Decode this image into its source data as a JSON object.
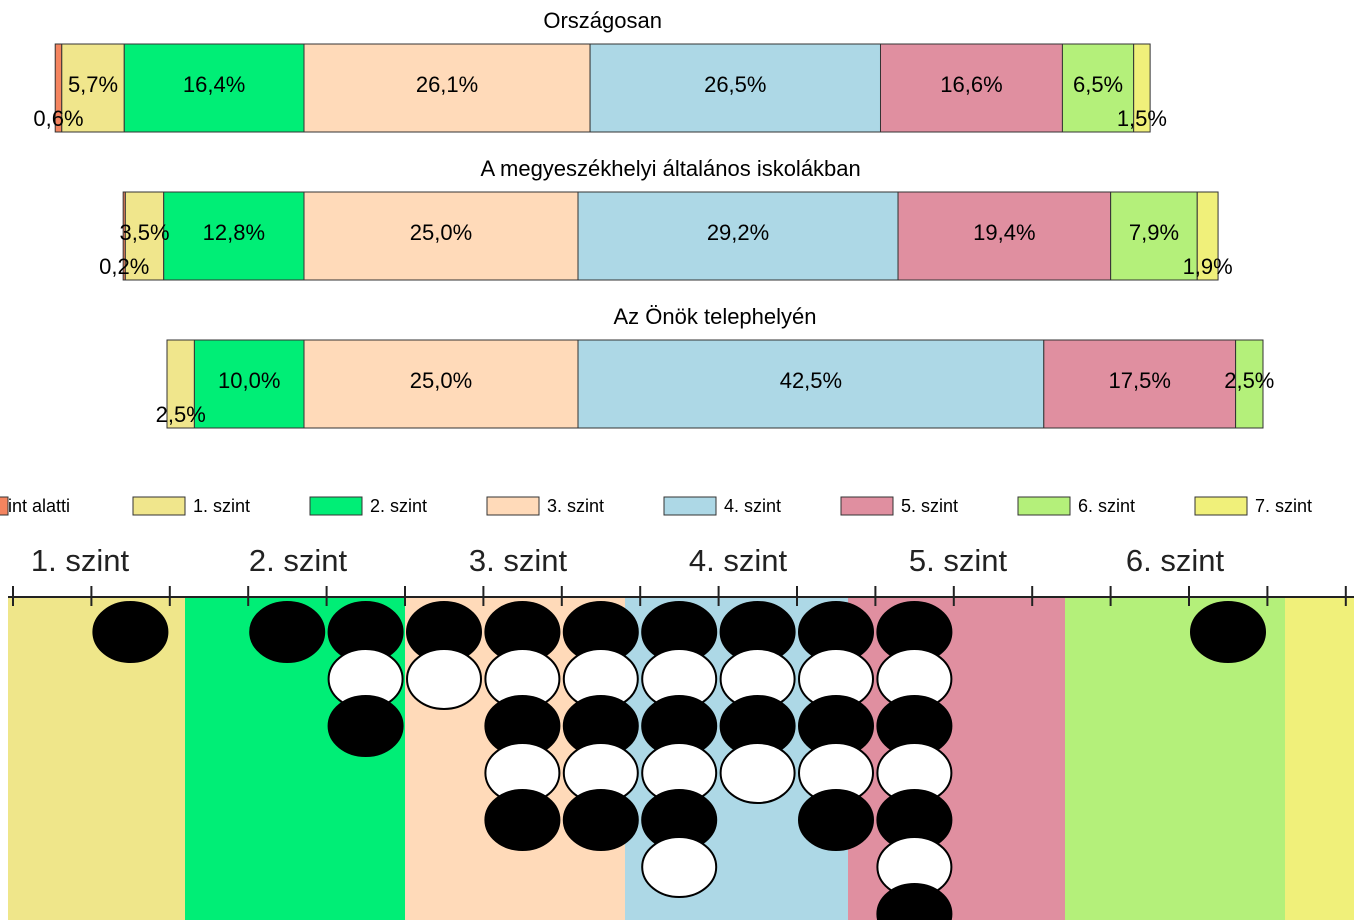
{
  "chart_data": {
    "type": "stacked-bar",
    "categories": [
      "Országosan",
      "A megyeszékhelyi általános iskolákban",
      "Az Önök telephelyén"
    ],
    "series": [
      {
        "name": "int alatti",
        "color": "#f4845f",
        "values": [
          0.6,
          0.2,
          null
        ],
        "value_labels": [
          "0,6%",
          "0,2%",
          null
        ]
      },
      {
        "name": "1. szint",
        "color": "#f0e68c",
        "values": [
          5.7,
          3.5,
          2.5
        ],
        "value_labels": [
          "5,7%",
          "3,5%",
          "2,5%"
        ]
      },
      {
        "name": "2. szint",
        "color": "#00ee76",
        "values": [
          16.4,
          12.8,
          10.0
        ],
        "value_labels": [
          "16,4%",
          "12,8%",
          "10,0%"
        ]
      },
      {
        "name": "3. szint",
        "color": "#ffdab9",
        "values": [
          26.1,
          25.0,
          25.0
        ],
        "value_labels": [
          "26,1%",
          "25,0%",
          "25,0%"
        ]
      },
      {
        "name": "4. szint",
        "color": "#add8e6",
        "values": [
          26.5,
          29.2,
          42.5
        ],
        "value_labels": [
          "26,5%",
          "29,2%",
          "42,5%"
        ]
      },
      {
        "name": "5. szint",
        "color": "#e08fa0",
        "values": [
          16.6,
          19.4,
          17.5
        ],
        "value_labels": [
          "16,6%",
          "19,4%",
          "17,5%"
        ]
      },
      {
        "name": "6. szint",
        "color": "#b4f07a",
        "values": [
          6.5,
          7.9,
          2.5
        ],
        "value_labels": [
          "6,5%",
          "7,9%",
          "2,5%"
        ]
      },
      {
        "name": "7. szint",
        "color": "#f0f07a",
        "values": [
          1.5,
          1.9,
          null
        ],
        "value_labels": [
          "1,5%",
          "1,9%",
          null
        ]
      }
    ]
  },
  "dot_plot": {
    "level_labels": [
      "1. szint",
      "2. szint",
      "3. szint",
      "4. szint",
      "5. szint",
      "6. szint"
    ],
    "columns": [
      [],
      [
        "black"
      ],
      [],
      [
        "black"
      ],
      [
        "black",
        "white",
        "black"
      ],
      [
        "black",
        "white"
      ],
      [
        "black",
        "white",
        "black",
        "white",
        "black"
      ],
      [
        "black",
        "white",
        "black",
        "white",
        "black"
      ],
      [
        "black",
        "white",
        "black",
        "white",
        "black",
        "white"
      ],
      [
        "black",
        "white",
        "black",
        "white"
      ],
      [
        "black",
        "white",
        "black",
        "white",
        "black"
      ],
      [
        "black",
        "white",
        "black",
        "white",
        "black",
        "white",
        "black"
      ],
      [],
      [],
      [],
      [
        "black"
      ]
    ]
  }
}
